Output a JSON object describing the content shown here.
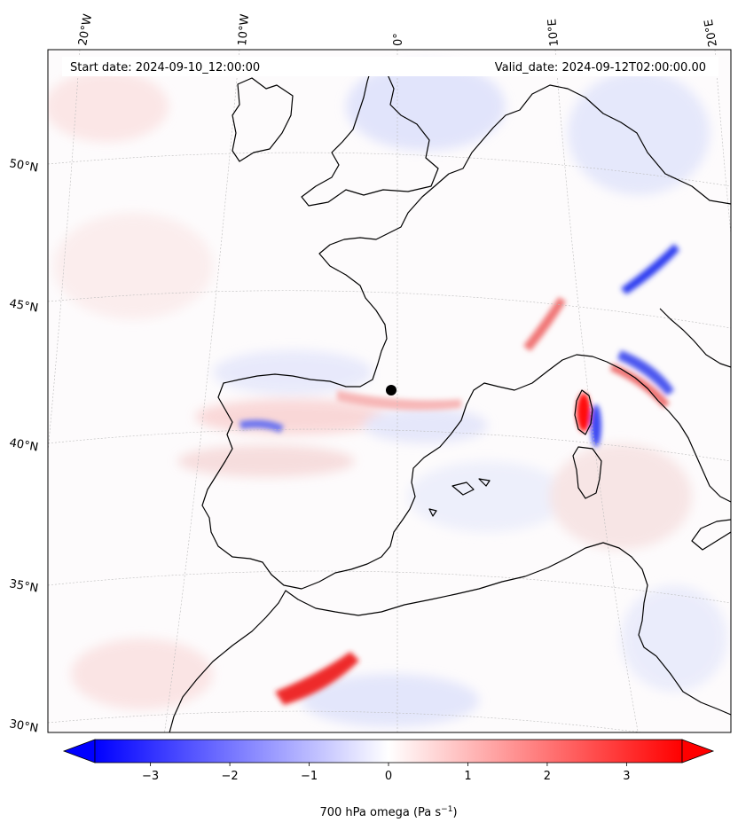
{
  "header": {
    "start_date": "Start date: 2024-09-10_12:00:00",
    "valid_date": "Valid_date: 2024-09-12T02:00:00.00"
  },
  "lon_labels": [
    "20°W",
    "10°W",
    "0°",
    "10°E",
    "20°E"
  ],
  "lat_labels": [
    "50°N",
    "45°N",
    "40°N",
    "35°N",
    "30°N"
  ],
  "colorbar": {
    "label": "700 hPa omega (Pa s",
    "label_sup": "−1",
    "label_end": ")",
    "min": -3.7,
    "max": 3.7,
    "ticks": [
      -3,
      -2,
      -1,
      0,
      1,
      2,
      3
    ],
    "tick_labels": [
      "−3",
      "−2",
      "−1",
      "0",
      "1",
      "2",
      "3"
    ],
    "low_color": "#0000ff",
    "mid_color": "#ffffff",
    "high_color": "#ff0000"
  },
  "features": [
    {
      "name": "red-band-morocco",
      "value": 3.4
    },
    {
      "name": "red-band-corsica",
      "value": 3.6
    },
    {
      "name": "blue-band-alps",
      "value": -3.2
    },
    {
      "name": "red-band-gulf-of-lion",
      "value": 2.2
    }
  ]
}
